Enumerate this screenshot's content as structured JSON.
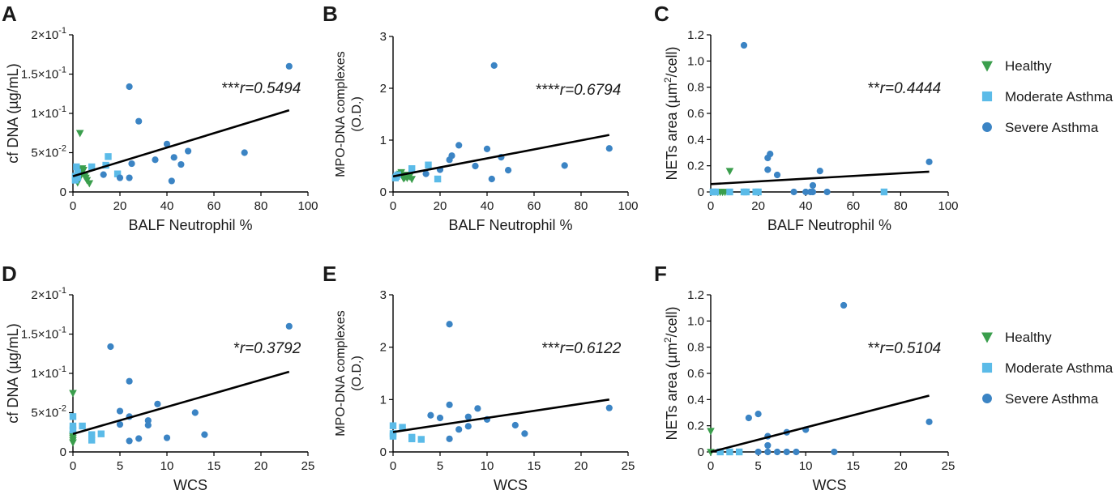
{
  "colors": {
    "healthy": "#3a9e4c",
    "moderate": "#5bbbe8",
    "severe": "#3b84c4",
    "axis": "#000000",
    "fit": "#000000"
  },
  "legend": [
    {
      "key": "healthy",
      "label": "Healthy",
      "marker": "triangle-down"
    },
    {
      "key": "moderate",
      "label": "Moderate Asthma",
      "marker": "square"
    },
    {
      "key": "severe",
      "label": "Severe Asthma",
      "marker": "circle"
    }
  ],
  "chart_data": [
    {
      "panel": "A",
      "type": "scatter",
      "xlabel": "BALF Neutrophil %",
      "ylabel": "cf DNA (µg/mL)",
      "xlim": [
        0,
        100
      ],
      "ylim": [
        0,
        0.2
      ],
      "xticks": [
        0,
        20,
        40,
        60,
        80,
        100
      ],
      "xtick_labels": [
        "0",
        "20",
        "40",
        "60",
        "80",
        "100"
      ],
      "yticks": [
        0,
        0.05,
        0.1,
        0.15,
        0.2
      ],
      "ytick_labels": [
        {
          "base": "0",
          "exp": ""
        },
        {
          "base": "5×10",
          "exp": "-2"
        },
        {
          "base": "1×10",
          "exp": "-1"
        },
        {
          "base": "1.5×10",
          "exp": "-1"
        },
        {
          "base": "2×10",
          "exp": "-1"
        }
      ],
      "annotation": {
        "stars": "***",
        "r": "r=0.5494"
      },
      "fit": {
        "x": [
          0,
          92
        ],
        "y": [
          0.02,
          0.104
        ]
      },
      "series": [
        {
          "key": "healthy",
          "points": [
            [
              3,
              0.075
            ],
            [
              3,
              0.027
            ],
            [
              4,
              0.03
            ],
            [
              5,
              0.02
            ],
            [
              6,
              0.015
            ],
            [
              2,
              0.012
            ],
            [
              3.5,
              0.022
            ],
            [
              5.5,
              0.018
            ],
            [
              4.5,
              0.028
            ],
            [
              7,
              0.011
            ],
            [
              2.5,
              0.016
            ]
          ]
        },
        {
          "key": "moderate",
          "points": [
            [
              1,
              0.02
            ],
            [
              1.5,
              0.032
            ],
            [
              2,
              0.018
            ],
            [
              8,
              0.032
            ],
            [
              14,
              0.034
            ],
            [
              15,
              0.045
            ],
            [
              19,
              0.023
            ],
            [
              1,
              0.015
            ],
            [
              2,
              0.025
            ]
          ]
        },
        {
          "key": "severe",
          "points": [
            [
              13,
              0.022
            ],
            [
              20,
              0.018
            ],
            [
              24,
              0.134
            ],
            [
              25,
              0.036
            ],
            [
              24,
              0.018
            ],
            [
              28,
              0.09
            ],
            [
              35,
              0.041
            ],
            [
              40,
              0.061
            ],
            [
              42,
              0.014
            ],
            [
              43,
              0.044
            ],
            [
              46,
              0.035
            ],
            [
              49,
              0.052
            ],
            [
              73,
              0.05
            ],
            [
              92,
              0.16
            ]
          ]
        }
      ]
    },
    {
      "panel": "B",
      "type": "scatter",
      "xlabel": "BALF Neutrophil %",
      "ylabel": "MPO-DNA complexes (O.D.)",
      "ylabel_lines": [
        "MPO-DNA complexes",
        "(O.D.)"
      ],
      "xlim": [
        0,
        100
      ],
      "ylim": [
        0,
        3
      ],
      "xticks": [
        0,
        20,
        40,
        60,
        80,
        100
      ],
      "xtick_labels": [
        "0",
        "20",
        "40",
        "60",
        "80",
        "100"
      ],
      "yticks": [
        0,
        1,
        2,
        3
      ],
      "ytick_labels": [
        {
          "base": "0",
          "exp": ""
        },
        {
          "base": "1",
          "exp": ""
        },
        {
          "base": "2",
          "exp": ""
        },
        {
          "base": "3",
          "exp": ""
        }
      ],
      "annotation": {
        "stars": "****",
        "r": "r=0.6794"
      },
      "fit": {
        "x": [
          0,
          92
        ],
        "y": [
          0.3,
          1.1
        ]
      },
      "series": [
        {
          "key": "healthy",
          "points": [
            [
              3,
              0.35
            ],
            [
              4,
              0.3
            ],
            [
              5,
              0.28
            ],
            [
              5.5,
              0.33
            ],
            [
              6,
              0.27
            ],
            [
              7,
              0.3
            ],
            [
              8,
              0.25
            ],
            [
              3.5,
              0.38
            ],
            [
              4.5,
              0.26
            ]
          ]
        },
        {
          "key": "moderate",
          "points": [
            [
              1,
              0.27
            ],
            [
              2,
              0.33
            ],
            [
              8,
              0.45
            ],
            [
              15,
              0.52
            ],
            [
              19,
              0.25
            ],
            [
              1.5,
              0.3
            ]
          ]
        },
        {
          "key": "severe",
          "points": [
            [
              14,
              0.35
            ],
            [
              20,
              0.43
            ],
            [
              24,
              0.62
            ],
            [
              25,
              0.7
            ],
            [
              28,
              0.9
            ],
            [
              35,
              0.5
            ],
            [
              40,
              0.83
            ],
            [
              42,
              0.25
            ],
            [
              43,
              2.44
            ],
            [
              46,
              0.67
            ],
            [
              49,
              0.42
            ],
            [
              73,
              0.51
            ],
            [
              92,
              0.84
            ]
          ]
        }
      ]
    },
    {
      "panel": "C",
      "type": "scatter",
      "xlabel": "BALF Neutrophil %",
      "ylabel": "NETs area (µm2/cell)",
      "ylabel_rich": {
        "pre": "NETs area (µm",
        "sup": "2",
        "post": "/cell)"
      },
      "xlim": [
        0,
        100
      ],
      "ylim": [
        0,
        1.2
      ],
      "xticks": [
        0,
        20,
        40,
        60,
        80,
        100
      ],
      "xtick_labels": [
        "0",
        "20",
        "40",
        "60",
        "80",
        "100"
      ],
      "yticks": [
        0,
        0.2,
        0.4,
        0.6,
        0.8,
        1.0,
        1.2
      ],
      "ytick_labels": [
        {
          "base": "0",
          "exp": ""
        },
        {
          "base": "0.2",
          "exp": ""
        },
        {
          "base": "0.4",
          "exp": ""
        },
        {
          "base": "0.6",
          "exp": ""
        },
        {
          "base": "0.8",
          "exp": ""
        },
        {
          "base": "1.0",
          "exp": ""
        },
        {
          "base": "1.2",
          "exp": ""
        }
      ],
      "annotation": {
        "stars": "**",
        "r": "r=0.4444"
      },
      "fit": {
        "x": [
          0,
          92
        ],
        "y": [
          0.06,
          0.155
        ]
      },
      "series": [
        {
          "key": "healthy",
          "points": [
            [
              8,
              0.16
            ],
            [
              3,
              0
            ],
            [
              4,
              0
            ],
            [
              5,
              0
            ],
            [
              6,
              0
            ]
          ]
        },
        {
          "key": "moderate",
          "points": [
            [
              1,
              0
            ],
            [
              2,
              0
            ],
            [
              8,
              0
            ],
            [
              14,
              0
            ],
            [
              15,
              0
            ],
            [
              19,
              0
            ],
            [
              20,
              0
            ],
            [
              73,
              0
            ]
          ]
        },
        {
          "key": "severe",
          "points": [
            [
              14,
              1.12
            ],
            [
              24,
              0.26
            ],
            [
              25,
              0.29
            ],
            [
              24,
              0.17
            ],
            [
              28,
              0.13
            ],
            [
              35,
              0
            ],
            [
              40,
              0
            ],
            [
              42,
              0
            ],
            [
              43,
              0.05
            ],
            [
              43,
              0
            ],
            [
              46,
              0.16
            ],
            [
              49,
              0
            ],
            [
              92,
              0.23
            ]
          ]
        }
      ]
    },
    {
      "panel": "D",
      "type": "scatter",
      "xlabel": "WCS",
      "ylabel": "cf DNA (µg/mL)",
      "xlim": [
        0,
        25
      ],
      "ylim": [
        0,
        0.2
      ],
      "xticks": [
        0,
        5,
        10,
        15,
        20,
        25
      ],
      "xtick_labels": [
        "0",
        "5",
        "10",
        "15",
        "20",
        "25"
      ],
      "yticks": [
        0,
        0.05,
        0.1,
        0.15,
        0.2
      ],
      "ytick_labels": [
        {
          "base": "0",
          "exp": ""
        },
        {
          "base": "5×10",
          "exp": "-2"
        },
        {
          "base": "1×10",
          "exp": "-1"
        },
        {
          "base": "1.5×10",
          "exp": "-1"
        },
        {
          "base": "2×10",
          "exp": "-1"
        }
      ],
      "annotation": {
        "stars": "*",
        "r": "r=0.3792"
      },
      "fit": {
        "x": [
          0,
          23
        ],
        "y": [
          0.023,
          0.102
        ]
      },
      "series": [
        {
          "key": "healthy",
          "points": [
            [
              0,
              0.075
            ],
            [
              0,
              0.012
            ],
            [
              0,
              0.02
            ],
            [
              0,
              0.022
            ],
            [
              0,
              0.018
            ],
            [
              0,
              0.015
            ]
          ]
        },
        {
          "key": "moderate",
          "points": [
            [
              0,
              0.045
            ],
            [
              0,
              0.033
            ],
            [
              0,
              0.028
            ],
            [
              1,
              0.033
            ],
            [
              2,
              0.022
            ],
            [
              2,
              0.015
            ],
            [
              3,
              0.023
            ]
          ]
        },
        {
          "key": "severe",
          "points": [
            [
              4,
              0.134
            ],
            [
              5,
              0.052
            ],
            [
              5,
              0.035
            ],
            [
              6,
              0.09
            ],
            [
              6,
              0.045
            ],
            [
              6,
              0.014
            ],
            [
              7,
              0.017
            ],
            [
              8,
              0.034
            ],
            [
              8,
              0.04
            ],
            [
              9,
              0.061
            ],
            [
              10,
              0.018
            ],
            [
              13,
              0.05
            ],
            [
              14,
              0.022
            ],
            [
              23,
              0.16
            ]
          ]
        }
      ]
    },
    {
      "panel": "E",
      "type": "scatter",
      "xlabel": "WCS",
      "ylabel": "MPO-DNA complexes (O.D.)",
      "ylabel_lines": [
        "MPO-DNA complexes",
        "(O.D.)"
      ],
      "xlim": [
        0,
        25
      ],
      "ylim": [
        0,
        3
      ],
      "xticks": [
        0,
        5,
        10,
        15,
        20,
        25
      ],
      "xtick_labels": [
        "0",
        "5",
        "10",
        "15",
        "20",
        "25"
      ],
      "yticks": [
        0,
        1,
        2,
        3
      ],
      "ytick_labels": [
        {
          "base": "0",
          "exp": ""
        },
        {
          "base": "1",
          "exp": ""
        },
        {
          "base": "2",
          "exp": ""
        },
        {
          "base": "3",
          "exp": ""
        }
      ],
      "annotation": {
        "stars": "***",
        "r": "r=0.6122"
      },
      "fit": {
        "x": [
          0,
          23
        ],
        "y": [
          0.38,
          1.0
        ]
      },
      "series": [
        {
          "key": "healthy",
          "points": []
        },
        {
          "key": "moderate",
          "points": [
            [
              0,
              0.5
            ],
            [
              0,
              0.35
            ],
            [
              0,
              0.3
            ],
            [
              1,
              0.47
            ],
            [
              2,
              0.28
            ],
            [
              2,
              0.25
            ],
            [
              3,
              0.24
            ]
          ]
        },
        {
          "key": "severe",
          "points": [
            [
              4,
              0.7
            ],
            [
              5,
              0.65
            ],
            [
              6,
              2.44
            ],
            [
              6,
              0.9
            ],
            [
              6,
              0.25
            ],
            [
              7,
              0.43
            ],
            [
              8,
              0.67
            ],
            [
              8,
              0.49
            ],
            [
              9,
              0.83
            ],
            [
              10,
              0.62
            ],
            [
              13,
              0.51
            ],
            [
              14,
              0.35
            ],
            [
              23,
              0.84
            ]
          ]
        }
      ]
    },
    {
      "panel": "F",
      "type": "scatter",
      "xlabel": "WCS",
      "ylabel": "NETs area (µm2/cell)",
      "ylabel_rich": {
        "pre": "NETs area (µm",
        "sup": "2",
        "post": "/cell)"
      },
      "xlim": [
        0,
        25
      ],
      "ylim": [
        0,
        1.2
      ],
      "xticks": [
        0,
        5,
        10,
        15,
        20,
        25
      ],
      "xtick_labels": [
        "0",
        "5",
        "10",
        "15",
        "20",
        "25"
      ],
      "yticks": [
        0,
        0.2,
        0.4,
        0.6,
        0.8,
        1.0,
        1.2
      ],
      "ytick_labels": [
        {
          "base": "0",
          "exp": ""
        },
        {
          "base": "0.2",
          "exp": ""
        },
        {
          "base": "0.4",
          "exp": ""
        },
        {
          "base": "0.6",
          "exp": ""
        },
        {
          "base": "0.8",
          "exp": ""
        },
        {
          "base": "1.0",
          "exp": ""
        },
        {
          "base": "1.2",
          "exp": ""
        }
      ],
      "annotation": {
        "stars": "**",
        "r": "r=0.5104"
      },
      "fit": {
        "x": [
          0,
          23
        ],
        "y": [
          0.0,
          0.43
        ]
      },
      "series": [
        {
          "key": "healthy",
          "points": [
            [
              0,
              0.16
            ],
            [
              0,
              0
            ]
          ]
        },
        {
          "key": "moderate",
          "points": [
            [
              1,
              0
            ],
            [
              2,
              0
            ],
            [
              3,
              0
            ]
          ]
        },
        {
          "key": "severe",
          "points": [
            [
              4,
              0.26
            ],
            [
              5,
              0.29
            ],
            [
              5,
              0
            ],
            [
              6,
              0.12
            ],
            [
              6,
              0.05
            ],
            [
              6,
              0
            ],
            [
              7,
              0
            ],
            [
              8,
              0.15
            ],
            [
              8,
              0
            ],
            [
              9,
              0
            ],
            [
              10,
              0.17
            ],
            [
              13,
              0
            ],
            [
              14,
              1.12
            ],
            [
              23,
              0.23
            ]
          ]
        }
      ]
    }
  ]
}
